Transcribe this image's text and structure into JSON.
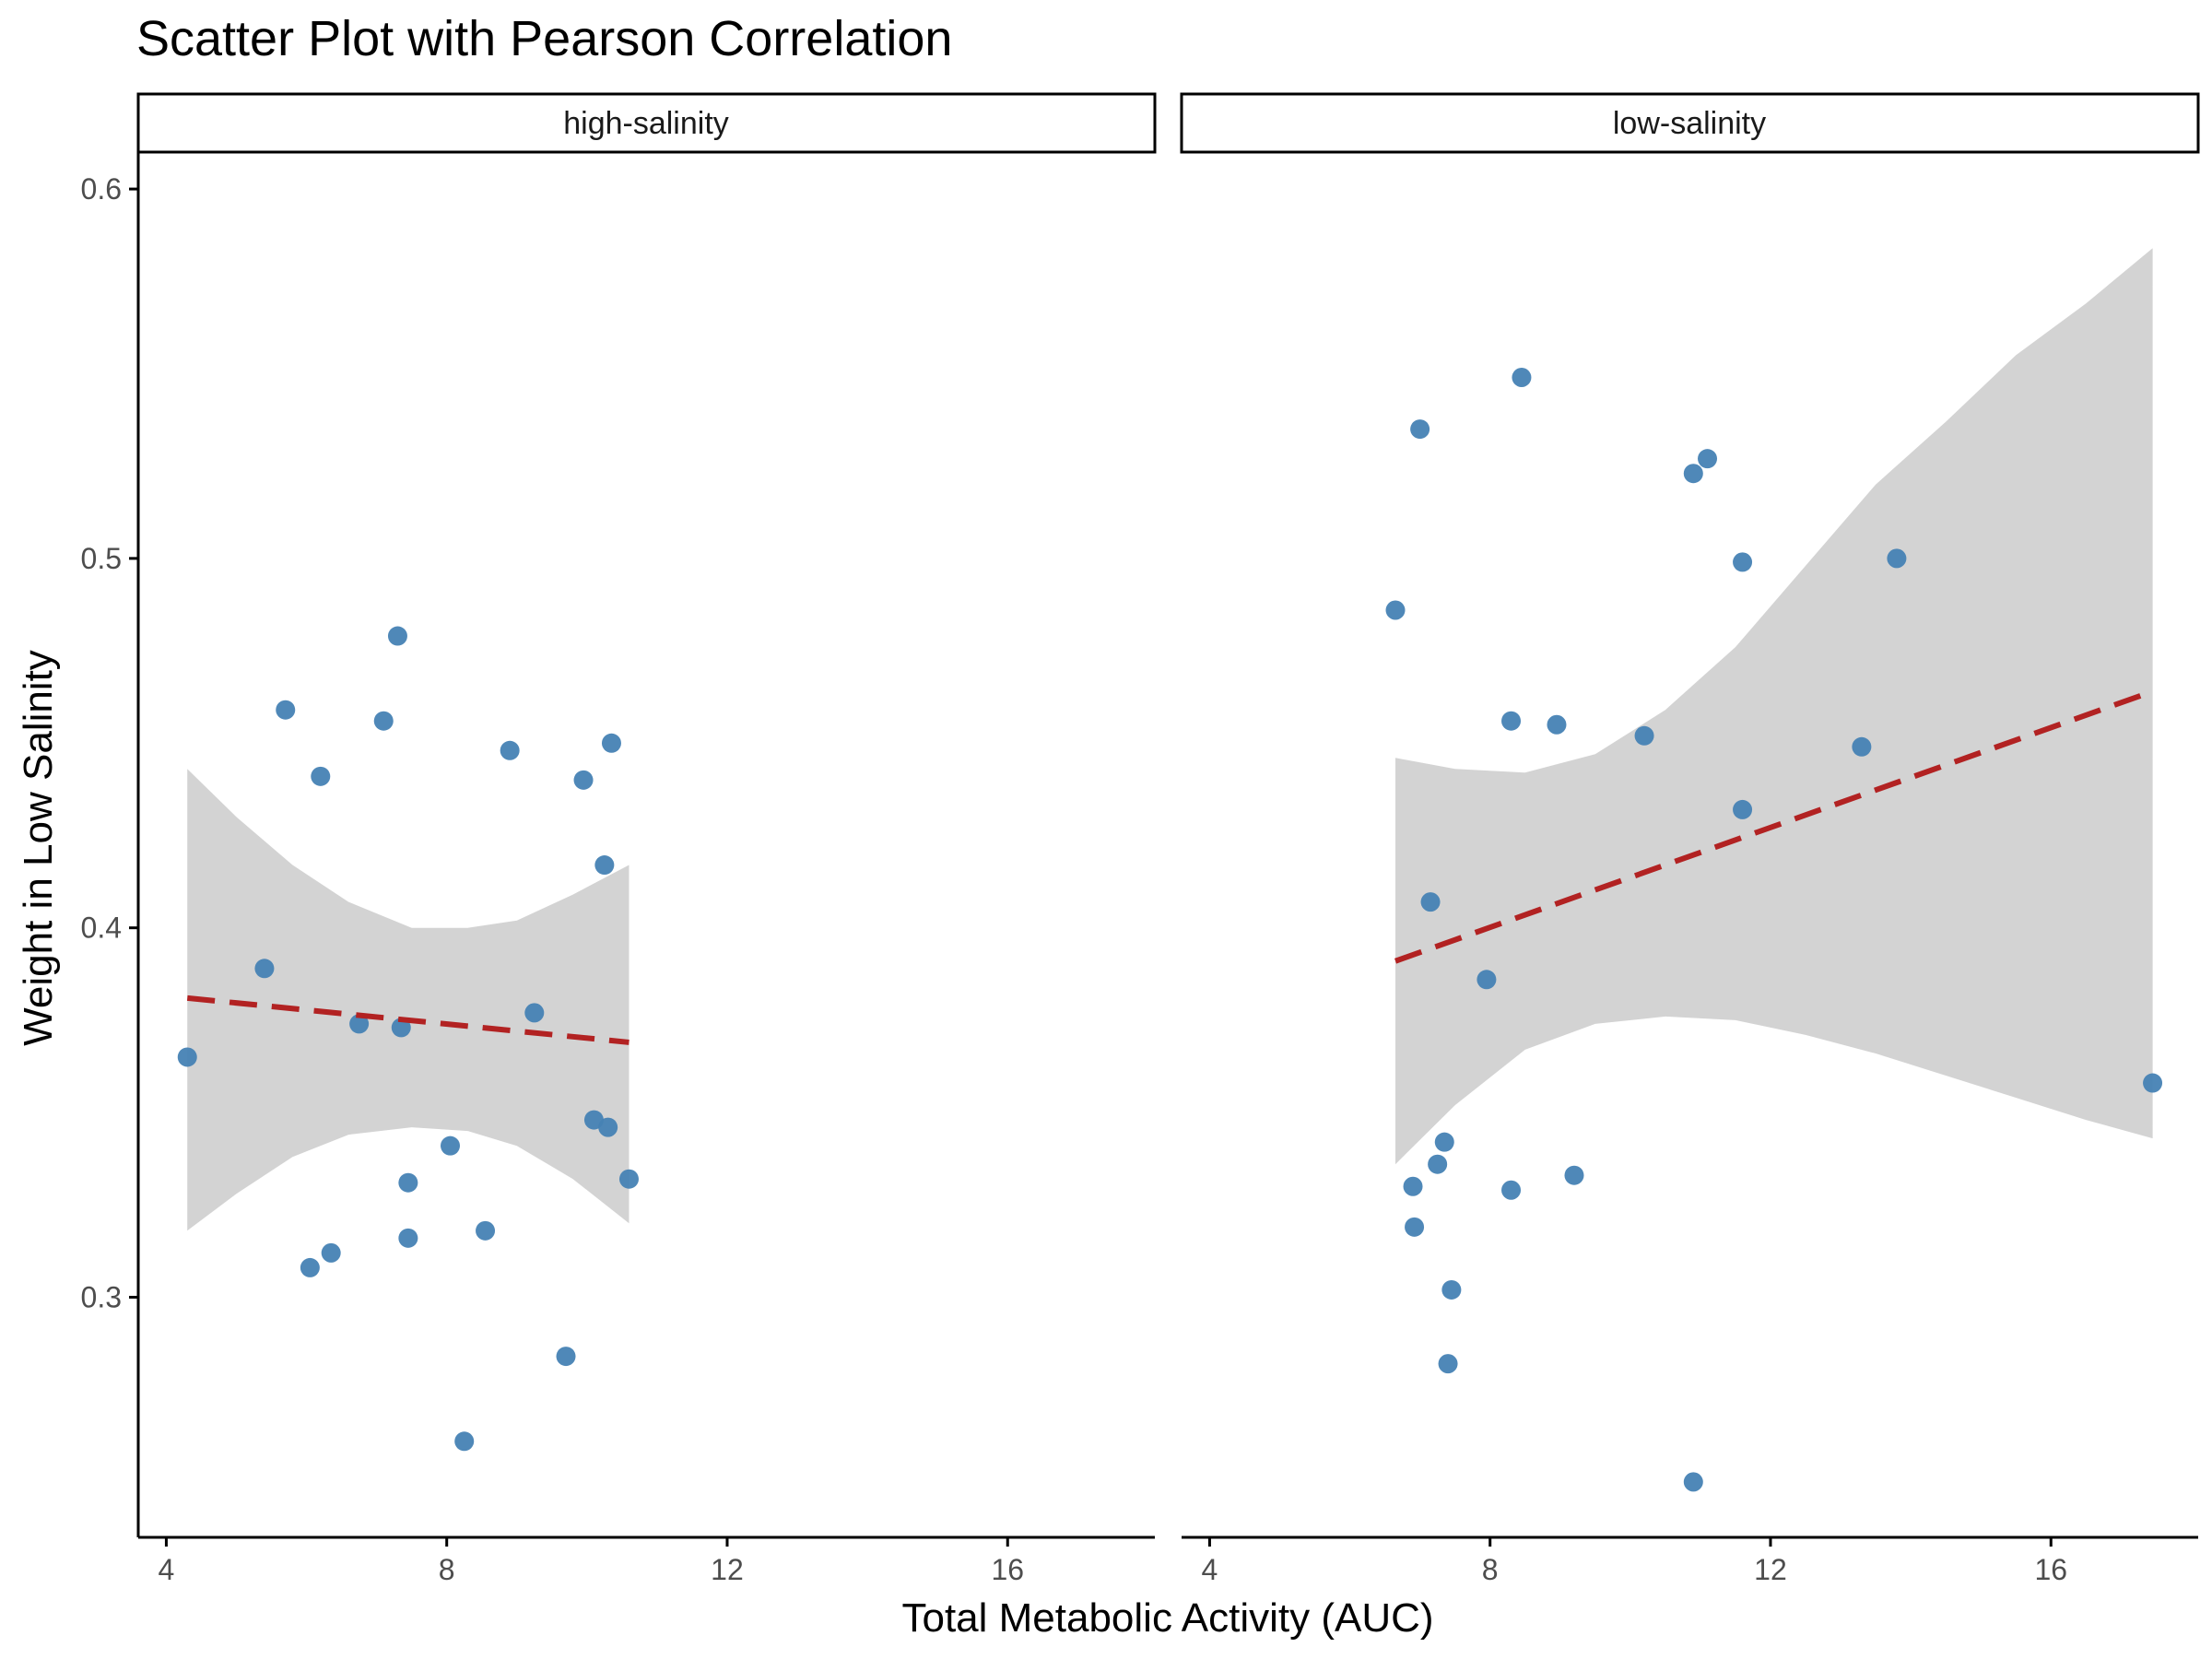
{
  "chart_data": {
    "type": "scatter",
    "title": "Scatter Plot with Pearson Correlation",
    "xlabel": "Total Metabolic Activity (AUC)",
    "ylabel": "Weight in Low Salinity",
    "xlim": [
      3.6,
      18.1
    ],
    "ylim": [
      0.235,
      0.61
    ],
    "x_ticks": [
      4,
      8,
      12,
      16
    ],
    "y_ticks": [
      0.3,
      0.4,
      0.5,
      0.6
    ],
    "x_tick_labels": [
      "4",
      "8",
      "12",
      "16"
    ],
    "y_tick_labels": [
      "0.3",
      "0.4",
      "0.5",
      "0.6"
    ],
    "grid": false,
    "legend": "none",
    "colors": {
      "points": "#4682b4",
      "fit_line": "#b22222",
      "confidence_band": "#d3d3d3",
      "axis": "#000000",
      "tick_text": "#4d4d4d"
    },
    "panels": [
      {
        "facet": "high-salinity",
        "points": [
          {
            "x": 4.3,
            "y": 0.365
          },
          {
            "x": 5.4,
            "y": 0.389
          },
          {
            "x": 5.7,
            "y": 0.459
          },
          {
            "x": 6.05,
            "y": 0.308
          },
          {
            "x": 6.2,
            "y": 0.441
          },
          {
            "x": 6.35,
            "y": 0.312
          },
          {
            "x": 6.75,
            "y": 0.374
          },
          {
            "x": 7.1,
            "y": 0.456
          },
          {
            "x": 7.35,
            "y": 0.373
          },
          {
            "x": 7.3,
            "y": 0.479
          },
          {
            "x": 7.45,
            "y": 0.331
          },
          {
            "x": 7.45,
            "y": 0.316
          },
          {
            "x": 8.05,
            "y": 0.341
          },
          {
            "x": 8.25,
            "y": 0.261
          },
          {
            "x": 8.55,
            "y": 0.318
          },
          {
            "x": 8.9,
            "y": 0.448
          },
          {
            "x": 9.25,
            "y": 0.377
          },
          {
            "x": 9.7,
            "y": 0.284
          },
          {
            "x": 9.95,
            "y": 0.44
          },
          {
            "x": 10.1,
            "y": 0.348
          },
          {
            "x": 10.25,
            "y": 0.417
          },
          {
            "x": 10.3,
            "y": 0.346
          },
          {
            "x": 10.35,
            "y": 0.45
          },
          {
            "x": 10.6,
            "y": 0.332
          }
        ],
        "fit": {
          "x_start": 4.3,
          "x_end": 10.6,
          "y_start": 0.381,
          "y_end": 0.369
        },
        "band": [
          {
            "x": 4.3,
            "lower": 0.318,
            "upper": 0.443
          },
          {
            "x": 5.0,
            "lower": 0.328,
            "upper": 0.43
          },
          {
            "x": 5.8,
            "lower": 0.338,
            "upper": 0.417
          },
          {
            "x": 6.6,
            "lower": 0.344,
            "upper": 0.407
          },
          {
            "x": 7.5,
            "lower": 0.346,
            "upper": 0.4
          },
          {
            "x": 8.3,
            "lower": 0.345,
            "upper": 0.4
          },
          {
            "x": 9.0,
            "lower": 0.341,
            "upper": 0.402
          },
          {
            "x": 9.8,
            "lower": 0.332,
            "upper": 0.409
          },
          {
            "x": 10.6,
            "lower": 0.32,
            "upper": 0.417
          }
        ]
      },
      {
        "facet": "low-salinity",
        "points": [
          {
            "x": 6.65,
            "y": 0.486
          },
          {
            "x": 6.9,
            "y": 0.33
          },
          {
            "x": 6.92,
            "y": 0.319
          },
          {
            "x": 7.0,
            "y": 0.535
          },
          {
            "x": 7.15,
            "y": 0.407
          },
          {
            "x": 7.25,
            "y": 0.336
          },
          {
            "x": 7.35,
            "y": 0.342
          },
          {
            "x": 7.4,
            "y": 0.282
          },
          {
            "x": 7.45,
            "y": 0.302
          },
          {
            "x": 7.95,
            "y": 0.386
          },
          {
            "x": 8.3,
            "y": 0.456
          },
          {
            "x": 8.3,
            "y": 0.329
          },
          {
            "x": 8.45,
            "y": 0.549
          },
          {
            "x": 8.95,
            "y": 0.455
          },
          {
            "x": 9.2,
            "y": 0.333
          },
          {
            "x": 10.2,
            "y": 0.452
          },
          {
            "x": 10.9,
            "y": 0.523
          },
          {
            "x": 10.9,
            "y": 0.25
          },
          {
            "x": 11.1,
            "y": 0.527
          },
          {
            "x": 11.6,
            "y": 0.499
          },
          {
            "x": 11.6,
            "y": 0.432
          },
          {
            "x": 13.3,
            "y": 0.449
          },
          {
            "x": 13.8,
            "y": 0.5
          },
          {
            "x": 17.45,
            "y": 0.358
          }
        ],
        "fit": {
          "x_start": 6.65,
          "x_end": 17.45,
          "y_start": 0.391,
          "y_end": 0.464
        },
        "band": [
          {
            "x": 6.65,
            "lower": 0.336,
            "upper": 0.446
          },
          {
            "x": 7.5,
            "lower": 0.352,
            "upper": 0.443
          },
          {
            "x": 8.5,
            "lower": 0.367,
            "upper": 0.442
          },
          {
            "x": 9.5,
            "lower": 0.374,
            "upper": 0.447
          },
          {
            "x": 10.5,
            "lower": 0.376,
            "upper": 0.459
          },
          {
            "x": 11.5,
            "lower": 0.375,
            "upper": 0.476
          },
          {
            "x": 12.5,
            "lower": 0.371,
            "upper": 0.498
          },
          {
            "x": 13.5,
            "lower": 0.366,
            "upper": 0.52
          },
          {
            "x": 14.5,
            "lower": 0.36,
            "upper": 0.537
          },
          {
            "x": 15.5,
            "lower": 0.354,
            "upper": 0.555
          },
          {
            "x": 16.5,
            "lower": 0.348,
            "upper": 0.569
          },
          {
            "x": 17.45,
            "lower": 0.343,
            "upper": 0.584
          }
        ]
      }
    ]
  }
}
